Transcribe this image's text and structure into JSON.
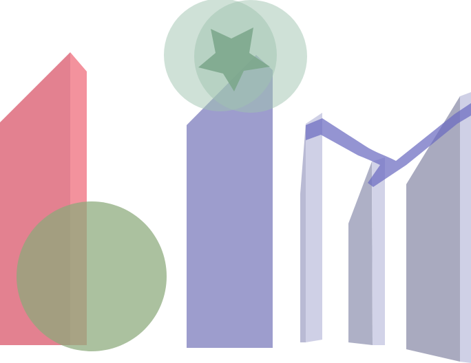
{
  "canvas": {
    "background": "#ffffff"
  },
  "shapes": {
    "red_tower": {
      "icon": "pentagon-tower-shape",
      "front": "#e27a8a",
      "side": "#f28c98",
      "opacity": 0.95
    },
    "green_circle": {
      "icon": "circle-shape",
      "fill": "#8aa97a",
      "opacity": 0.72
    },
    "blue_tower": {
      "icon": "pentagon-tower-shape",
      "fill": "#9b9bcc",
      "opacity": 0.98
    },
    "top_circles": {
      "icon": "circle-shape",
      "fill": "#9fc4b0",
      "opacity": 0.5
    },
    "green_star": {
      "icon": "star-shape",
      "fill": "#7aa68a",
      "opacity": 0.85
    },
    "pillar_left": {
      "icon": "pillar-shape",
      "front": "#cfd0e6",
      "side": "#b9bad4"
    },
    "pillar_middle": {
      "icon": "pillar-shape",
      "front": "#aeb0c6",
      "side": "#d2d3e8"
    },
    "pillar_right": {
      "icon": "pillar-shape",
      "front": "#a9aabf",
      "side": "#cfd0e6"
    },
    "ribbon": {
      "icon": "ribbon-shape",
      "fill": "#6b6bc0",
      "opacity": 0.72
    }
  }
}
